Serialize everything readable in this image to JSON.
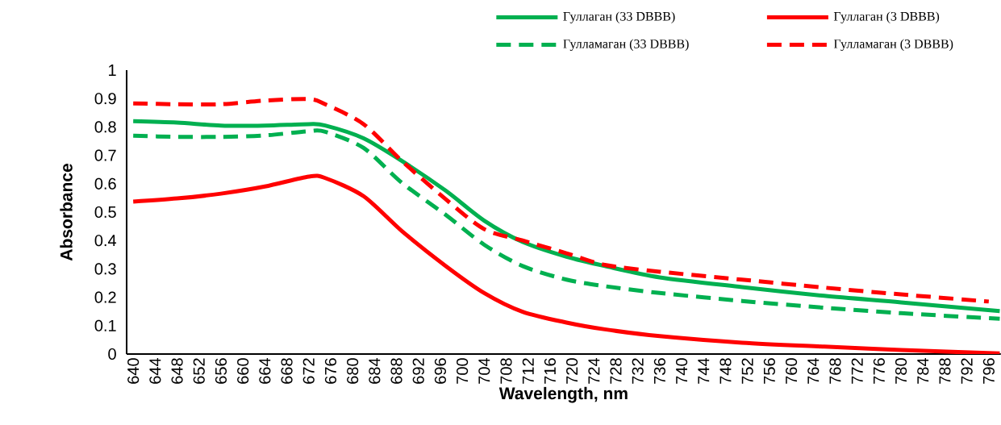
{
  "chart_data": {
    "type": "line",
    "xlabel": "Wavelength, nm",
    "ylabel": "Absorbance",
    "xlim": [
      638.8,
      798.2
    ],
    "xticks": [
      640,
      644,
      648,
      652,
      656,
      660,
      664,
      668,
      672,
      676,
      680,
      684,
      688,
      692,
      696,
      700,
      704,
      708,
      712,
      716,
      720,
      724,
      728,
      732,
      736,
      740,
      744,
      748,
      752,
      756,
      760,
      764,
      768,
      772,
      776,
      780,
      784,
      788,
      792,
      796
    ],
    "ylim": [
      0,
      1
    ],
    "yticks": [
      0,
      0.1,
      0.2,
      0.3,
      0.4,
      0.5,
      0.6,
      0.7,
      0.8,
      0.9,
      1
    ],
    "grid": false,
    "legend": "top",
    "marker": "none",
    "series": [
      {
        "name": "Гуллаган  (33 DBBB)",
        "color": "#00b050",
        "line_style": "solid",
        "x": [
          640,
          648,
          656,
          664,
          672,
          675,
          682,
          689,
          697,
          704,
          711,
          719,
          726,
          736,
          751,
          766,
          780,
          798
        ],
        "values": [
          0.82,
          0.815,
          0.805,
          0.805,
          0.81,
          0.805,
          0.76,
          0.68,
          0.575,
          0.47,
          0.395,
          0.343,
          0.31,
          0.27,
          0.236,
          0.205,
          0.182,
          0.151
        ]
      },
      {
        "name": "Гуллаган (3 DBBB)",
        "color": "#ff0000",
        "line_style": "solid",
        "x": [
          640,
          648,
          656,
          664,
          672,
          675,
          682,
          689,
          697,
          704,
          711,
          719,
          726,
          736,
          751,
          766,
          780,
          798
        ],
        "values": [
          0.537,
          0.548,
          0.565,
          0.59,
          0.625,
          0.62,
          0.556,
          0.433,
          0.31,
          0.215,
          0.149,
          0.111,
          0.087,
          0.063,
          0.04,
          0.026,
          0.014,
          0.002
        ]
      },
      {
        "name": "Гулламаган    (33 DBBB)",
        "color": "#00b050",
        "line_style": "dashed",
        "x": [
          640,
          648,
          656,
          664,
          672,
          675,
          682,
          689,
          697,
          704,
          711,
          719,
          726,
          736,
          751,
          766,
          780,
          798
        ],
        "values": [
          0.769,
          0.765,
          0.765,
          0.77,
          0.785,
          0.783,
          0.726,
          0.603,
          0.49,
          0.385,
          0.31,
          0.262,
          0.239,
          0.215,
          0.187,
          0.163,
          0.144,
          0.124
        ]
      },
      {
        "name": "Гулламаган    (3 DBBB)",
        "color": "#ff0000",
        "line_style": "dashed",
        "x": [
          640,
          648,
          656,
          664,
          672,
          675,
          682,
          689,
          697,
          704,
          711,
          719,
          726,
          736,
          751,
          766,
          780,
          796
        ],
        "values": [
          0.883,
          0.88,
          0.88,
          0.893,
          0.898,
          0.88,
          0.81,
          0.68,
          0.545,
          0.44,
          0.4,
          0.355,
          0.314,
          0.29,
          0.262,
          0.234,
          0.21,
          0.185
        ]
      }
    ]
  }
}
